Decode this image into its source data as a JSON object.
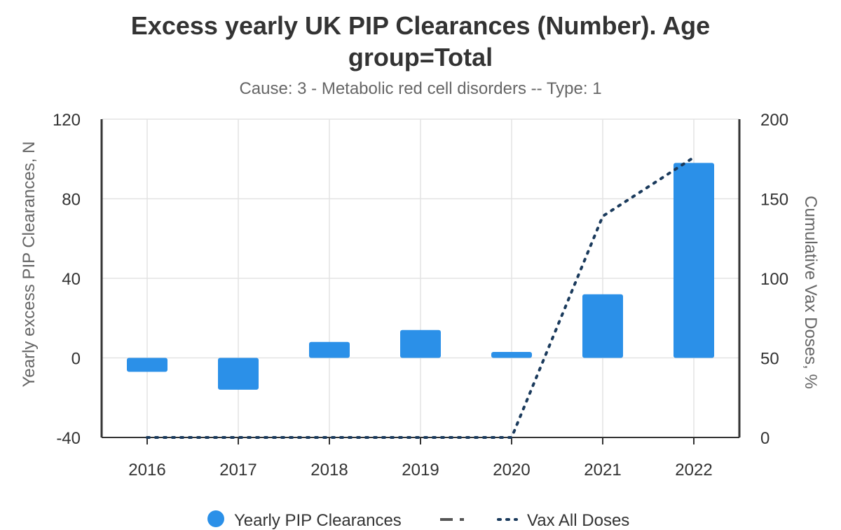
{
  "chart_data": {
    "type": "bar",
    "title": "Excess yearly UK PIP Clearances (Number). Age group=Total",
    "subtitle": "Cause: 3 - Metabolic red cell disorders -- Type: 1",
    "categories": [
      "2016",
      "2017",
      "2018",
      "2019",
      "2020",
      "2021",
      "2022"
    ],
    "y_left": {
      "label": "Yearly excess PIP Clearances, N",
      "range": [
        -40,
        120
      ],
      "ticks": [
        -40,
        0,
        40,
        80,
        120
      ]
    },
    "y_right": {
      "label": "Cumulative Vax Doses, %",
      "range": [
        0,
        200
      ],
      "ticks": [
        0,
        50,
        100,
        150,
        200
      ]
    },
    "series": [
      {
        "name": "Yearly PIP Clearances",
        "type": "bar",
        "axis": "left",
        "color": "#2b90e8",
        "values": [
          -7,
          -16,
          8,
          14,
          3,
          32,
          98
        ]
      },
      {
        "name": "Vax All Doses",
        "type": "line",
        "axis": "right",
        "style": "dotted",
        "color": "#1a3a5c",
        "values": [
          0,
          0,
          0,
          0,
          0,
          139,
          176
        ]
      }
    ],
    "legend": {
      "position": "bottom",
      "items": [
        {
          "label": "Yearly PIP Clearances",
          "symbol": "circle",
          "color": "#2b90e8"
        },
        {
          "label": "",
          "symbol": "dash-dot",
          "color": "#555555"
        },
        {
          "label": "Vax All Doses",
          "symbol": "dotted",
          "color": "#1a3a5c"
        }
      ]
    },
    "grid": true
  }
}
